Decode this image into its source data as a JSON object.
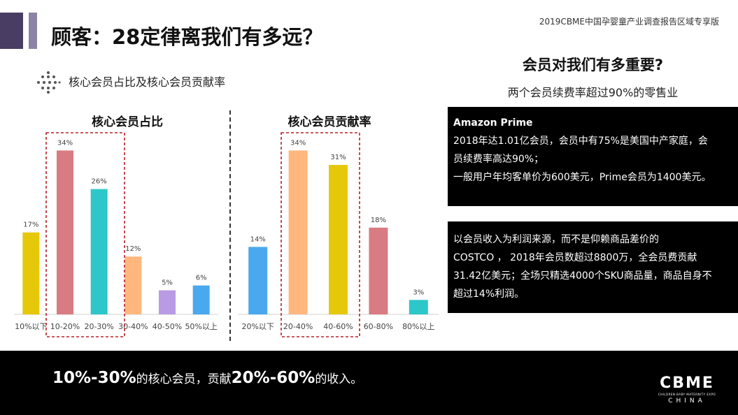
{
  "header": {
    "title": "顾客：28定律离我们有多远？",
    "report_label": "2019CBME中国孕婴童产业调查报告区域专享版"
  },
  "section": {
    "label": "核心会员占比及核心会员贡献率"
  },
  "chart_data": [
    {
      "type": "bar",
      "title": "核心会员占比",
      "categories": [
        "10%以下",
        "10-20%",
        "20-30%",
        "30-40%",
        "40-50%",
        "50%以上"
      ],
      "values": [
        17,
        34,
        26,
        12,
        5,
        6
      ],
      "data_labels": [
        "17%",
        "34%",
        "26%",
        "12%",
        "5%",
        "6%"
      ],
      "colors": [
        "#e6c80a",
        "#d97b82",
        "#2cc7c8",
        "#ffb77e",
        "#b99be3",
        "#4aa9ee"
      ],
      "highlighted": [
        "10-20%",
        "20-30%"
      ],
      "ylim": [
        0,
        40
      ],
      "grid": false
    },
    {
      "type": "bar",
      "title": "核心会员贡献率",
      "categories": [
        "20%以下",
        "20-40%",
        "40-60%",
        "60-80%",
        "80%以上"
      ],
      "values": [
        14,
        34,
        31,
        18,
        3
      ],
      "data_labels": [
        "14%",
        "34%",
        "31%",
        "18%",
        "3%"
      ],
      "colors": [
        "#4aa9ee",
        "#ffb77e",
        "#e6c80a",
        "#d97b82",
        "#2cc7c8"
      ],
      "highlighted": [
        "20-40%",
        "40-60%"
      ],
      "ylim": [
        0,
        40
      ],
      "grid": false
    }
  ],
  "right_panel": {
    "title": "会员对我们有多重要?",
    "subtitle": "两个会员续费率超过90%的零售业",
    "amazon_box": {
      "heading": "Amazon Prime",
      "line1": "2018年达1.01亿会员，会员中有75%是美国中产家庭，会",
      "line2": "员续费率高达90%；",
      "line3": "一般用户年均客单价为600美元，Prime会员为1400美元。"
    },
    "costco_box": {
      "line1": "以会员收入为利润来源，而不是仰赖商品差价的",
      "line2": "COSTCO ， 2018年会员数超过8800万，全会员费贡献",
      "line3": "31.42亿美元；全场只精选4000个SKU商品量，商品自身不",
      "line4": "超过14%利润。"
    }
  },
  "footer": {
    "part1": "10%-30%",
    "part2": "的核心会员，贡献",
    "part3": "20%-60%",
    "part4": "的收入。"
  },
  "logo": {
    "mark": "CBME",
    "tagline": "CHILDREN·BABY·MATERNITY EXPO",
    "sub": "CHINA"
  }
}
